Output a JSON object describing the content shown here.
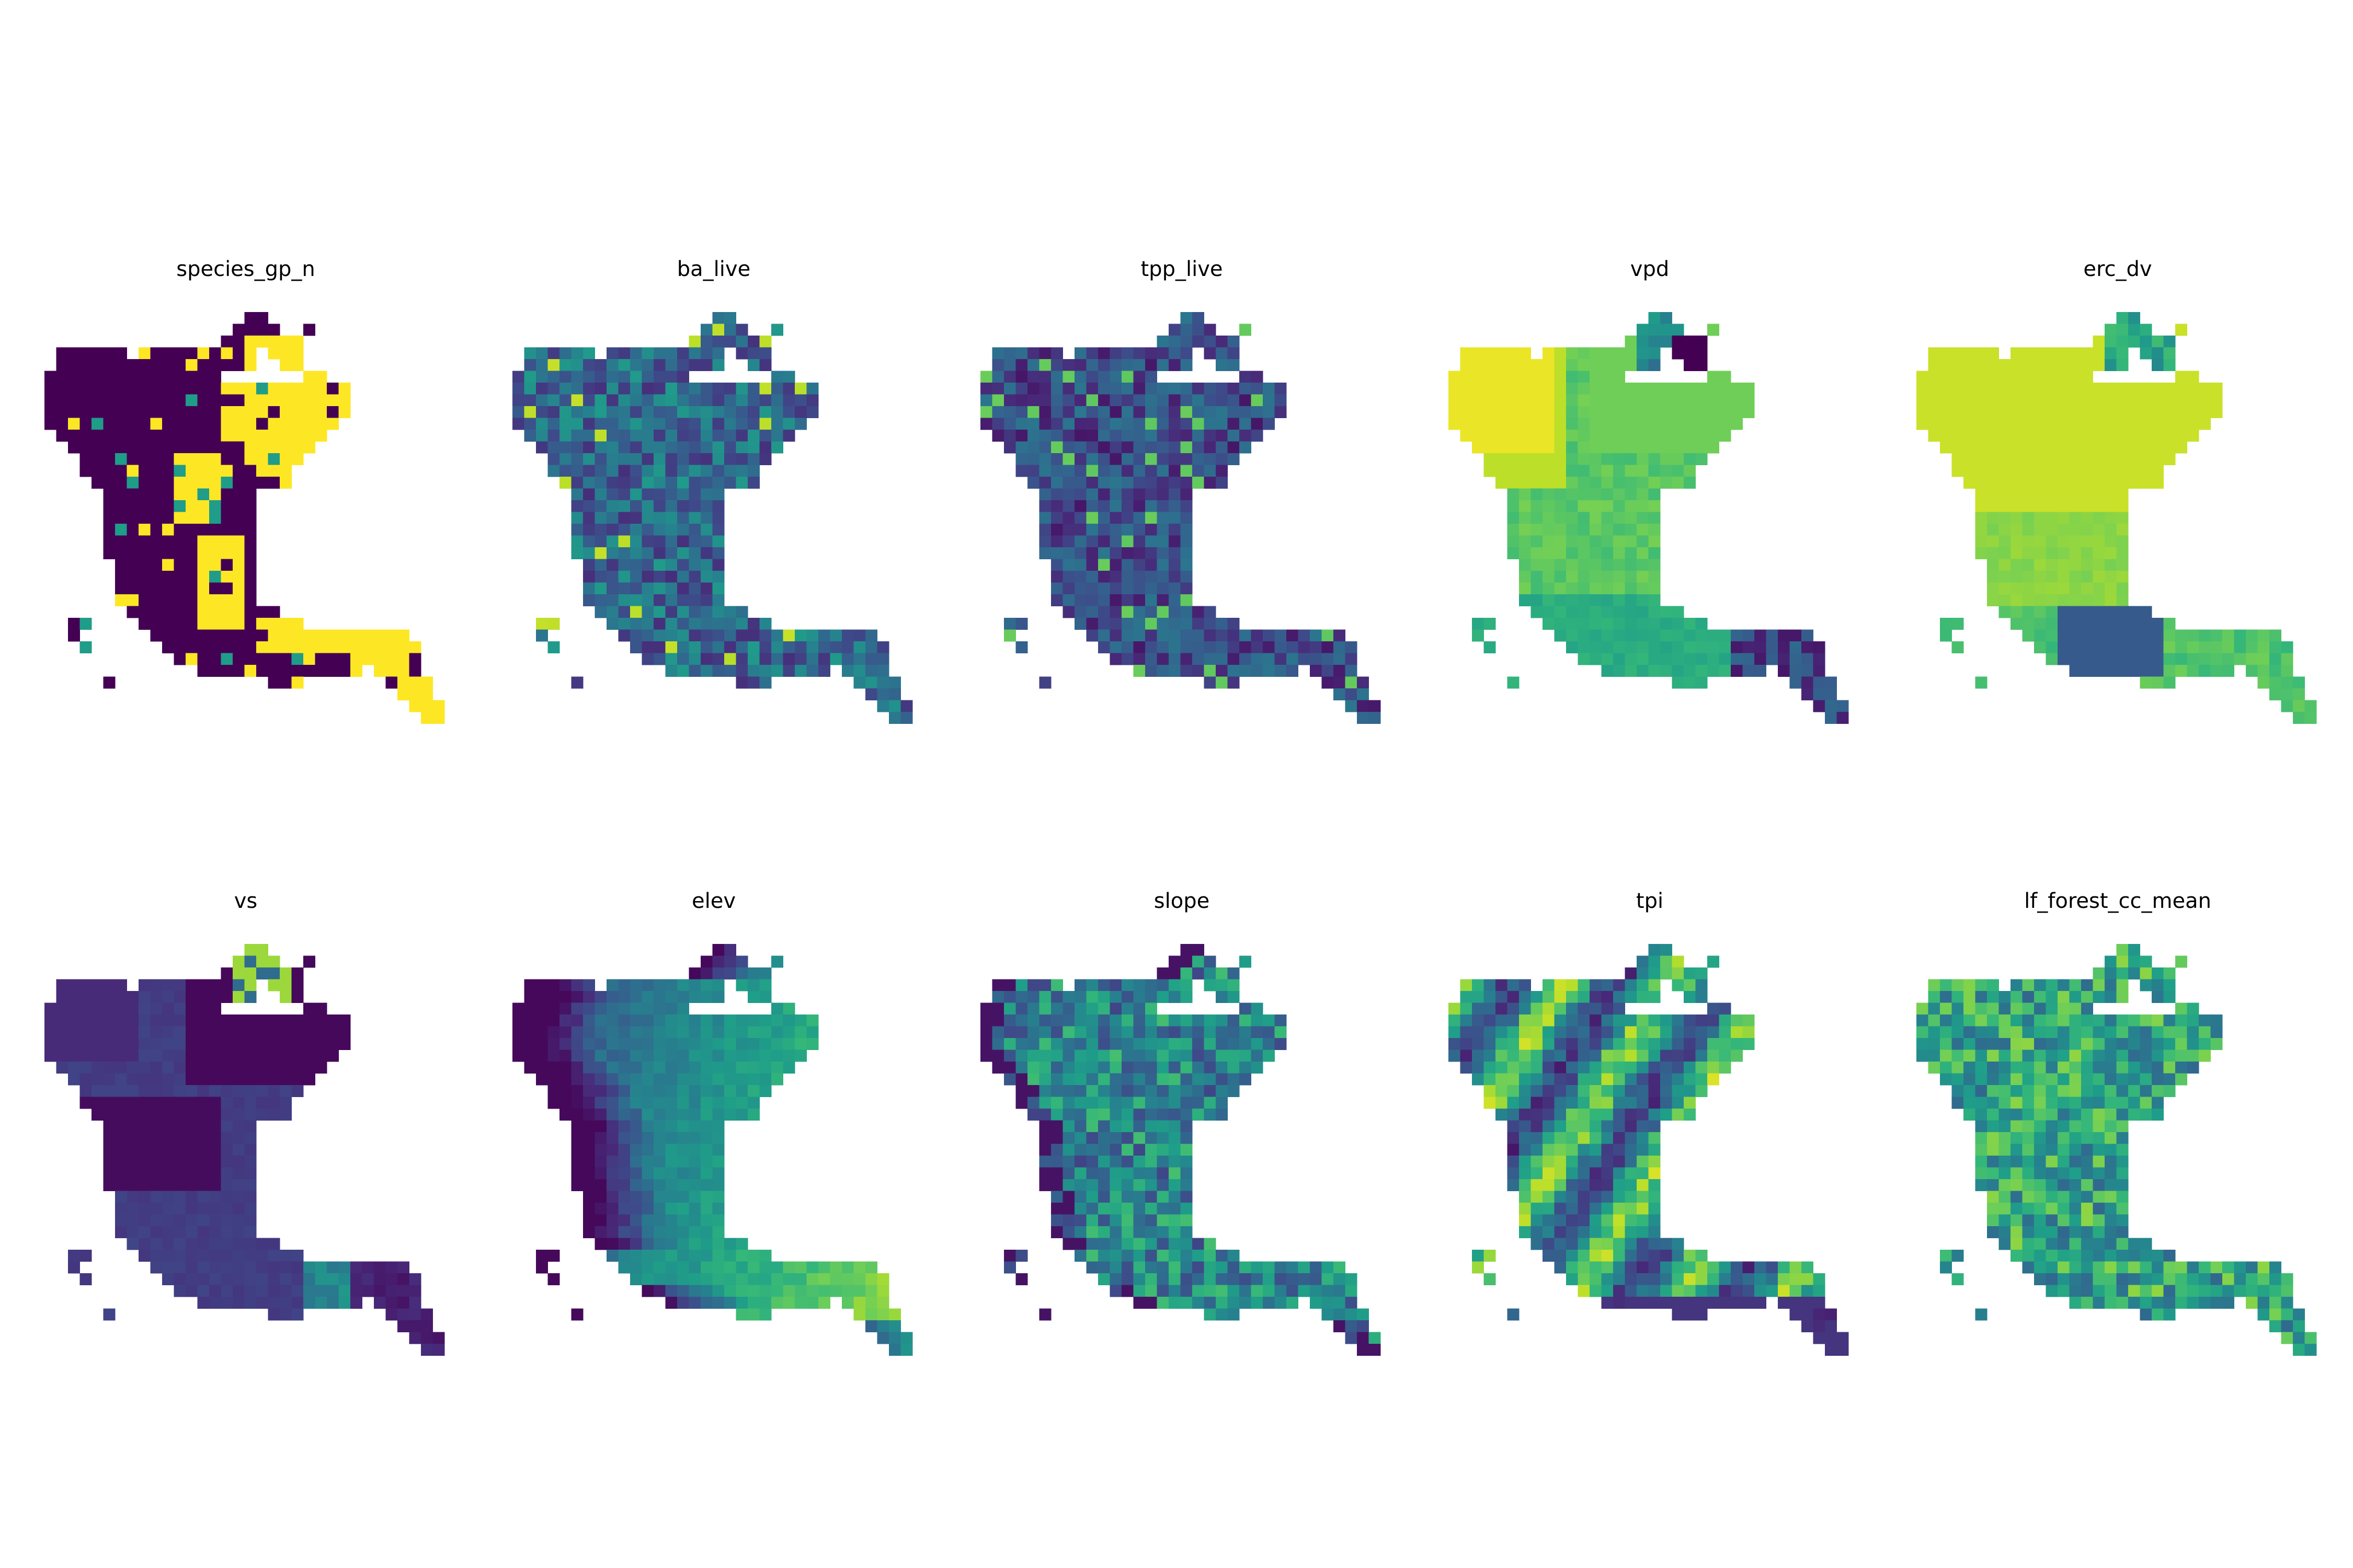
{
  "chart_data": {
    "type": "heatmap",
    "colormap": "viridis",
    "grid": false,
    "axes_visible": false,
    "panels": [
      {
        "title": "species_gp_n",
        "style": "categorical"
      },
      {
        "title": "ba_live",
        "style": "noise",
        "base": 0.35,
        "amp": 0.22
      },
      {
        "title": "tpp_live",
        "style": "noise",
        "base": 0.24,
        "amp": 0.18
      },
      {
        "title": "vpd",
        "style": "zones"
      },
      {
        "title": "erc_dv",
        "style": "zones2"
      },
      {
        "title": "vs",
        "style": "zones3"
      },
      {
        "title": "elev",
        "style": "gradient"
      },
      {
        "title": "slope",
        "style": "slope"
      },
      {
        "title": "tpi",
        "style": "ridges"
      },
      {
        "title": "lf_forest_cc_mean",
        "style": "canopy"
      }
    ]
  }
}
